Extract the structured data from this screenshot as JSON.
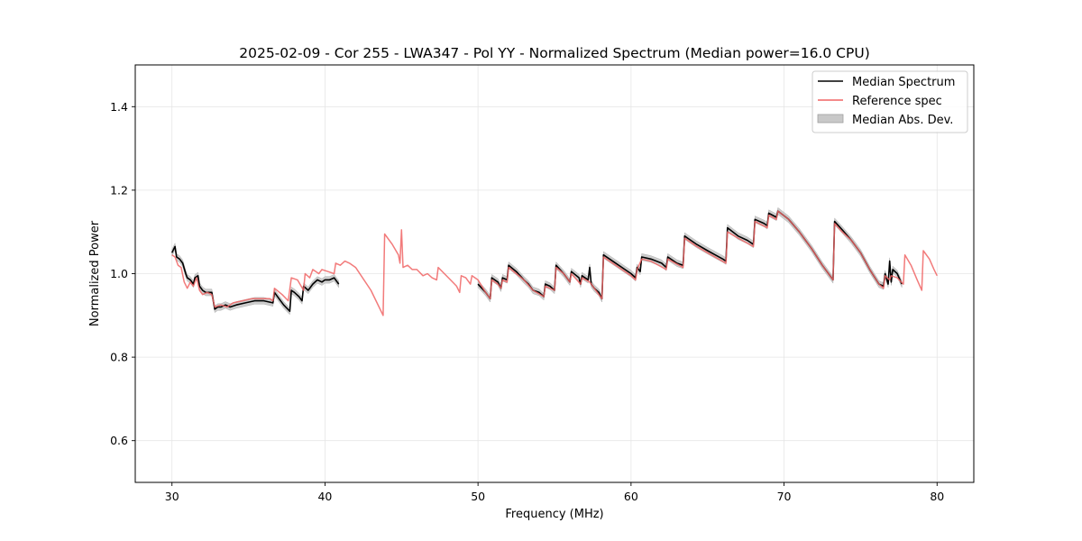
{
  "chart_data": {
    "type": "line",
    "title": "2025-02-09 - Cor 255 - LWA347 - Pol YY - Normalized Spectrum (Median power=16.0 CPU)",
    "xlabel": "Frequency (MHz)",
    "ylabel": "Normalized Power",
    "xlim": [
      27.6,
      82.4
    ],
    "ylim": [
      0.5,
      1.5
    ],
    "xticks": [
      30,
      40,
      50,
      60,
      70,
      80
    ],
    "yticks": [
      0.6,
      0.8,
      1.0,
      1.2,
      1.4
    ],
    "xtick_labels": [
      "30",
      "40",
      "50",
      "60",
      "70",
      "80"
    ],
    "ytick_labels": [
      "0.6",
      "0.8",
      "1.0",
      "1.2",
      "1.4"
    ],
    "grid": true,
    "legend_position": "top-right",
    "legend": [
      "Median Spectrum",
      "Reference spec",
      "Median Abs. Dev."
    ],
    "colors": {
      "median": "#000000",
      "reference": "#f06464",
      "mad_band": "#b0b0b0"
    },
    "mad_halfwidth": 0.008,
    "series": [
      {
        "name": "Median Spectrum",
        "segments": [
          [
            [
              30.0,
              1.05
            ],
            [
              30.2,
              1.065
            ],
            [
              30.3,
              1.04
            ],
            [
              30.5,
              1.035
            ],
            [
              30.7,
              1.025
            ],
            [
              30.9,
              1.0
            ],
            [
              31.0,
              0.99
            ],
            [
              31.2,
              0.985
            ],
            [
              31.4,
              0.975
            ],
            [
              31.5,
              0.99
            ],
            [
              31.7,
              0.995
            ],
            [
              31.8,
              0.97
            ],
            [
              32.0,
              0.96
            ],
            [
              32.2,
              0.955
            ],
            [
              32.4,
              0.955
            ],
            [
              32.6,
              0.955
            ],
            [
              32.8,
              0.915
            ],
            [
              33.0,
              0.92
            ],
            [
              33.2,
              0.92
            ],
            [
              33.5,
              0.925
            ],
            [
              33.8,
              0.92
            ],
            [
              34.2,
              0.925
            ],
            [
              34.8,
              0.93
            ],
            [
              35.4,
              0.935
            ],
            [
              36.0,
              0.935
            ],
            [
              36.6,
              0.93
            ],
            [
              36.7,
              0.955
            ],
            [
              37.0,
              0.94
            ],
            [
              37.3,
              0.925
            ],
            [
              37.7,
              0.91
            ],
            [
              37.8,
              0.96
            ],
            [
              38.0,
              0.955
            ],
            [
              38.3,
              0.945
            ],
            [
              38.5,
              0.935
            ],
            [
              38.6,
              0.97
            ],
            [
              38.9,
              0.96
            ],
            [
              39.2,
              0.975
            ],
            [
              39.5,
              0.985
            ],
            [
              39.8,
              0.98
            ],
            [
              40.0,
              0.985
            ],
            [
              40.3,
              0.985
            ],
            [
              40.6,
              0.99
            ],
            [
              40.9,
              0.975
            ]
          ],
          [
            [
              50.0,
              0.975
            ],
            [
              50.5,
              0.955
            ],
            [
              50.8,
              0.94
            ],
            [
              50.9,
              0.99
            ],
            [
              51.3,
              0.98
            ],
            [
              51.5,
              0.965
            ],
            [
              51.6,
              0.99
            ],
            [
              51.9,
              0.985
            ],
            [
              52.0,
              1.02
            ],
            [
              52.5,
              1.005
            ],
            [
              53.0,
              0.985
            ],
            [
              53.3,
              0.975
            ],
            [
              53.6,
              0.96
            ],
            [
              54.0,
              0.955
            ],
            [
              54.3,
              0.945
            ],
            [
              54.4,
              0.975
            ],
            [
              54.7,
              0.97
            ],
            [
              55.0,
              0.96
            ],
            [
              55.1,
              1.02
            ],
            [
              55.6,
              1.0
            ],
            [
              56.0,
              0.98
            ],
            [
              56.1,
              1.005
            ],
            [
              56.6,
              0.99
            ],
            [
              56.7,
              0.975
            ],
            [
              56.8,
              0.995
            ],
            [
              57.2,
              0.985
            ],
            [
              57.3,
              1.015
            ],
            [
              57.4,
              0.975
            ],
            [
              57.6,
              0.965
            ],
            [
              57.9,
              0.955
            ],
            [
              58.1,
              0.94
            ],
            [
              58.2,
              1.045
            ],
            [
              59.0,
              1.025
            ],
            [
              59.6,
              1.01
            ],
            [
              60.0,
              1.0
            ],
            [
              60.3,
              0.99
            ],
            [
              60.4,
              1.015
            ],
            [
              60.6,
              1.005
            ],
            [
              60.7,
              1.04
            ],
            [
              61.3,
              1.035
            ],
            [
              62.0,
              1.025
            ],
            [
              62.3,
              1.015
            ],
            [
              62.4,
              1.04
            ],
            [
              63.0,
              1.025
            ],
            [
              63.4,
              1.02
            ],
            [
              63.5,
              1.09
            ],
            [
              64.3,
              1.07
            ],
            [
              65.0,
              1.055
            ],
            [
              65.5,
              1.045
            ],
            [
              66.0,
              1.035
            ],
            [
              66.2,
              1.03
            ],
            [
              66.3,
              1.11
            ],
            [
              67.0,
              1.09
            ],
            [
              67.6,
              1.08
            ],
            [
              68.0,
              1.07
            ],
            [
              68.1,
              1.13
            ],
            [
              68.7,
              1.12
            ],
            [
              68.9,
              1.115
            ],
            [
              69.0,
              1.145
            ],
            [
              69.5,
              1.135
            ],
            [
              69.6,
              1.15
            ],
            [
              70.3,
              1.13
            ],
            [
              71.0,
              1.1
            ],
            [
              71.8,
              1.06
            ],
            [
              72.5,
              1.02
            ],
            [
              73.2,
              0.985
            ],
            [
              73.3,
              1.125
            ],
            [
              73.8,
              1.105
            ],
            [
              74.4,
              1.08
            ],
            [
              75.0,
              1.05
            ],
            [
              75.6,
              1.01
            ],
            [
              76.2,
              0.975
            ],
            [
              76.5,
              0.97
            ],
            [
              76.6,
              1.0
            ],
            [
              76.8,
              0.975
            ],
            [
              76.9,
              1.03
            ],
            [
              77.0,
              0.98
            ],
            [
              77.1,
              1.01
            ],
            [
              77.4,
              1.0
            ],
            [
              77.7,
              0.975
            ]
          ]
        ]
      },
      {
        "name": "Reference spec",
        "segments": [
          [
            [
              30.0,
              1.045
            ],
            [
              30.2,
              1.04
            ],
            [
              30.4,
              1.02
            ],
            [
              30.6,
              1.015
            ],
            [
              30.8,
              0.98
            ],
            [
              31.0,
              0.965
            ],
            [
              31.2,
              0.98
            ],
            [
              31.4,
              0.97
            ],
            [
              31.6,
              0.99
            ],
            [
              31.8,
              0.96
            ],
            [
              32.0,
              0.95
            ],
            [
              32.3,
              0.955
            ],
            [
              32.6,
              0.95
            ],
            [
              32.8,
              0.92
            ],
            [
              33.2,
              0.925
            ],
            [
              33.6,
              0.92
            ],
            [
              34.0,
              0.93
            ],
            [
              34.6,
              0.935
            ],
            [
              35.2,
              0.94
            ],
            [
              35.8,
              0.94
            ],
            [
              36.4,
              0.94
            ],
            [
              36.6,
              0.935
            ],
            [
              36.7,
              0.965
            ],
            [
              37.2,
              0.95
            ],
            [
              37.6,
              0.935
            ],
            [
              37.8,
              0.99
            ],
            [
              38.2,
              0.985
            ],
            [
              38.6,
              0.96
            ],
            [
              38.7,
              1.0
            ],
            [
              39.0,
              0.99
            ],
            [
              39.2,
              1.01
            ],
            [
              39.6,
              1.0
            ],
            [
              39.8,
              1.01
            ],
            [
              40.2,
              1.005
            ],
            [
              40.6,
              1.0
            ],
            [
              40.7,
              1.025
            ],
            [
              41.0,
              1.02
            ],
            [
              41.3,
              1.03
            ],
            [
              41.6,
              1.025
            ],
            [
              42.0,
              1.015
            ],
            [
              43.0,
              0.96
            ],
            [
              43.8,
              0.9
            ],
            [
              43.9,
              1.095
            ],
            [
              44.4,
              1.07
            ],
            [
              44.8,
              1.045
            ],
            [
              44.9,
              1.025
            ],
            [
              45.0,
              1.105
            ],
            [
              45.1,
              1.015
            ],
            [
              45.4,
              1.02
            ],
            [
              45.7,
              1.01
            ],
            [
              46.0,
              1.01
            ],
            [
              46.4,
              0.995
            ],
            [
              46.7,
              1.0
            ],
            [
              47.0,
              0.99
            ],
            [
              47.3,
              0.985
            ],
            [
              47.4,
              1.015
            ],
            [
              47.8,
              1.0
            ],
            [
              48.2,
              0.985
            ],
            [
              48.6,
              0.97
            ],
            [
              48.8,
              0.955
            ],
            [
              48.9,
              0.995
            ],
            [
              49.2,
              0.99
            ],
            [
              49.5,
              0.975
            ],
            [
              49.6,
              0.995
            ],
            [
              50.0,
              0.985
            ],
            [
              50.5,
              0.955
            ],
            [
              50.8,
              0.94
            ],
            [
              50.9,
              0.985
            ],
            [
              51.3,
              0.975
            ],
            [
              51.5,
              0.965
            ],
            [
              51.6,
              0.985
            ],
            [
              51.9,
              0.98
            ],
            [
              52.0,
              1.015
            ],
            [
              52.5,
              1.0
            ],
            [
              53.0,
              0.985
            ],
            [
              53.6,
              0.96
            ],
            [
              54.3,
              0.945
            ],
            [
              54.4,
              0.97
            ],
            [
              55.0,
              0.96
            ],
            [
              55.1,
              1.015
            ],
            [
              55.6,
              1.0
            ],
            [
              56.0,
              0.98
            ],
            [
              56.1,
              1.0
            ],
            [
              56.7,
              0.975
            ],
            [
              56.8,
              0.99
            ],
            [
              57.3,
              0.98
            ],
            [
              57.6,
              0.965
            ],
            [
              58.1,
              0.94
            ],
            [
              58.2,
              1.04
            ],
            [
              59.0,
              1.02
            ],
            [
              60.0,
              0.995
            ],
            [
              60.3,
              0.985
            ],
            [
              60.4,
              1.01
            ],
            [
              60.7,
              1.035
            ],
            [
              61.3,
              1.03
            ],
            [
              62.3,
              1.01
            ],
            [
              62.4,
              1.035
            ],
            [
              63.4,
              1.015
            ],
            [
              63.5,
              1.085
            ],
            [
              64.3,
              1.065
            ],
            [
              65.0,
              1.05
            ],
            [
              66.2,
              1.025
            ],
            [
              66.3,
              1.1
            ],
            [
              67.0,
              1.085
            ],
            [
              68.0,
              1.065
            ],
            [
              68.1,
              1.125
            ],
            [
              68.9,
              1.11
            ],
            [
              69.0,
              1.14
            ],
            [
              69.5,
              1.13
            ],
            [
              69.6,
              1.15
            ],
            [
              70.3,
              1.13
            ],
            [
              71.0,
              1.1
            ],
            [
              71.8,
              1.06
            ],
            [
              72.5,
              1.02
            ],
            [
              73.2,
              0.985
            ],
            [
              73.3,
              1.12
            ],
            [
              73.8,
              1.1
            ],
            [
              74.4,
              1.08
            ],
            [
              75.0,
              1.05
            ],
            [
              75.6,
              1.01
            ],
            [
              76.2,
              0.975
            ],
            [
              76.5,
              0.965
            ],
            [
              76.6,
              0.995
            ],
            [
              76.9,
              0.985
            ],
            [
              77.0,
              0.995
            ],
            [
              77.4,
              0.99
            ],
            [
              77.8,
              0.975
            ],
            [
              77.9,
              1.045
            ],
            [
              78.3,
              1.02
            ],
            [
              78.7,
              0.985
            ],
            [
              79.0,
              0.96
            ],
            [
              79.1,
              1.055
            ],
            [
              79.5,
              1.035
            ],
            [
              79.8,
              1.01
            ],
            [
              80.0,
              0.995
            ]
          ]
        ]
      }
    ]
  }
}
